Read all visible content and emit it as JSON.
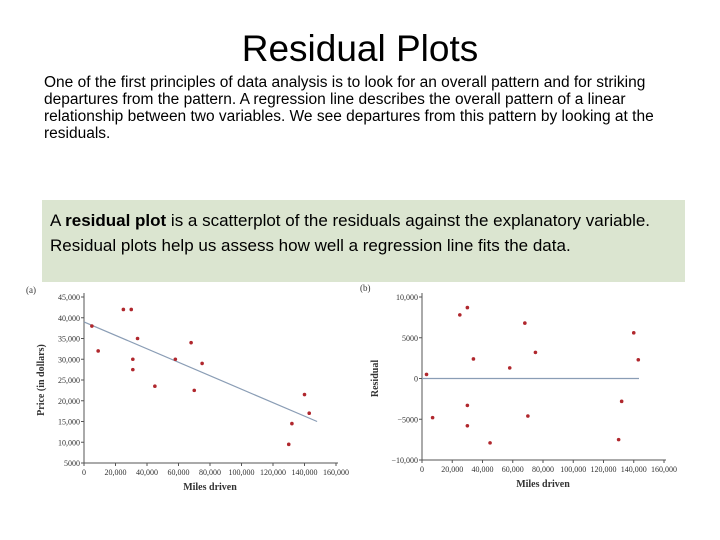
{
  "slide": {
    "title": "Residual Plots",
    "intro": "One of the first principles of data analysis is to look for an overall pattern and for striking departures from the pattern. A regression line describes the overall pattern of a linear relationship between two variables. We see departures from this pattern by looking at the residuals.",
    "definition": {
      "prefix": "A ",
      "term": "residual plot",
      "suffix": " is a scatterplot of the residuals against the explanatory variable. Residual plots help us assess how well a regression line fits the data."
    }
  },
  "colors": {
    "point": "#b0272d",
    "line": "#8a9db5",
    "box": "#dbe5d0"
  },
  "chart_data": [
    {
      "type": "scatter",
      "panel_label": "(a)",
      "xlabel": "Miles driven",
      "ylabel": "Price (in dollars)",
      "xlim": [
        0,
        160000
      ],
      "ylim": [
        5000,
        45000
      ],
      "xticks": [
        0,
        20000,
        40000,
        60000,
        80000,
        100000,
        120000,
        140000,
        160000
      ],
      "xtick_labels": [
        "0",
        "20,000",
        "40,000",
        "60,000",
        "80,000",
        "100,000",
        "120,000",
        "140,000",
        "160,000"
      ],
      "yticks": [
        5000,
        10000,
        15000,
        20000,
        25000,
        30000,
        35000,
        40000,
        45000
      ],
      "ytick_labels": [
        "5000",
        "10,000",
        "15,000",
        "20,000",
        "25,000",
        "30,000",
        "35,000",
        "40,000",
        "45,000"
      ],
      "regression_line": {
        "x": [
          0,
          148000
        ],
        "y": [
          39000,
          15000
        ]
      },
      "points": [
        {
          "x": 5000,
          "y": 38000
        },
        {
          "x": 9000,
          "y": 32000
        },
        {
          "x": 25000,
          "y": 42000
        },
        {
          "x": 30000,
          "y": 42000
        },
        {
          "x": 31000,
          "y": 30000
        },
        {
          "x": 31000,
          "y": 27500
        },
        {
          "x": 34000,
          "y": 35000
        },
        {
          "x": 45000,
          "y": 23500
        },
        {
          "x": 58000,
          "y": 30000
        },
        {
          "x": 68000,
          "y": 34000
        },
        {
          "x": 70000,
          "y": 22500
        },
        {
          "x": 75000,
          "y": 29000
        },
        {
          "x": 130000,
          "y": 9500
        },
        {
          "x": 132000,
          "y": 14500
        },
        {
          "x": 140000,
          "y": 21500
        },
        {
          "x": 143000,
          "y": 17000
        }
      ]
    },
    {
      "type": "scatter",
      "panel_label": "(b)",
      "xlabel": "Miles driven",
      "ylabel": "Residual",
      "xlim": [
        0,
        160000
      ],
      "ylim": [
        -10000,
        10000
      ],
      "xticks": [
        0,
        20000,
        40000,
        60000,
        80000,
        100000,
        120000,
        140000,
        160000
      ],
      "xtick_labels": [
        "0",
        "20,000",
        "40,000",
        "60,000",
        "80,000",
        "100,000",
        "120,000",
        "140,000",
        "160,000"
      ],
      "yticks": [
        -10000,
        -5000,
        0,
        5000,
        10000
      ],
      "ytick_labels": [
        "−10,000",
        "−5000",
        "0",
        "5000",
        "10,000"
      ],
      "zero_line": 0,
      "points": [
        {
          "x": 3000,
          "y": 500
        },
        {
          "x": 7000,
          "y": -4800
        },
        {
          "x": 25000,
          "y": 7800
        },
        {
          "x": 30000,
          "y": 8700
        },
        {
          "x": 30000,
          "y": -3300
        },
        {
          "x": 30000,
          "y": -5800
        },
        {
          "x": 34000,
          "y": 2400
        },
        {
          "x": 45000,
          "y": -7900
        },
        {
          "x": 58000,
          "y": 1300
        },
        {
          "x": 68000,
          "y": 6800
        },
        {
          "x": 70000,
          "y": -4600
        },
        {
          "x": 75000,
          "y": 3200
        },
        {
          "x": 130000,
          "y": -7500
        },
        {
          "x": 132000,
          "y": -2800
        },
        {
          "x": 140000,
          "y": 5600
        },
        {
          "x": 143000,
          "y": 2300
        }
      ]
    }
  ]
}
